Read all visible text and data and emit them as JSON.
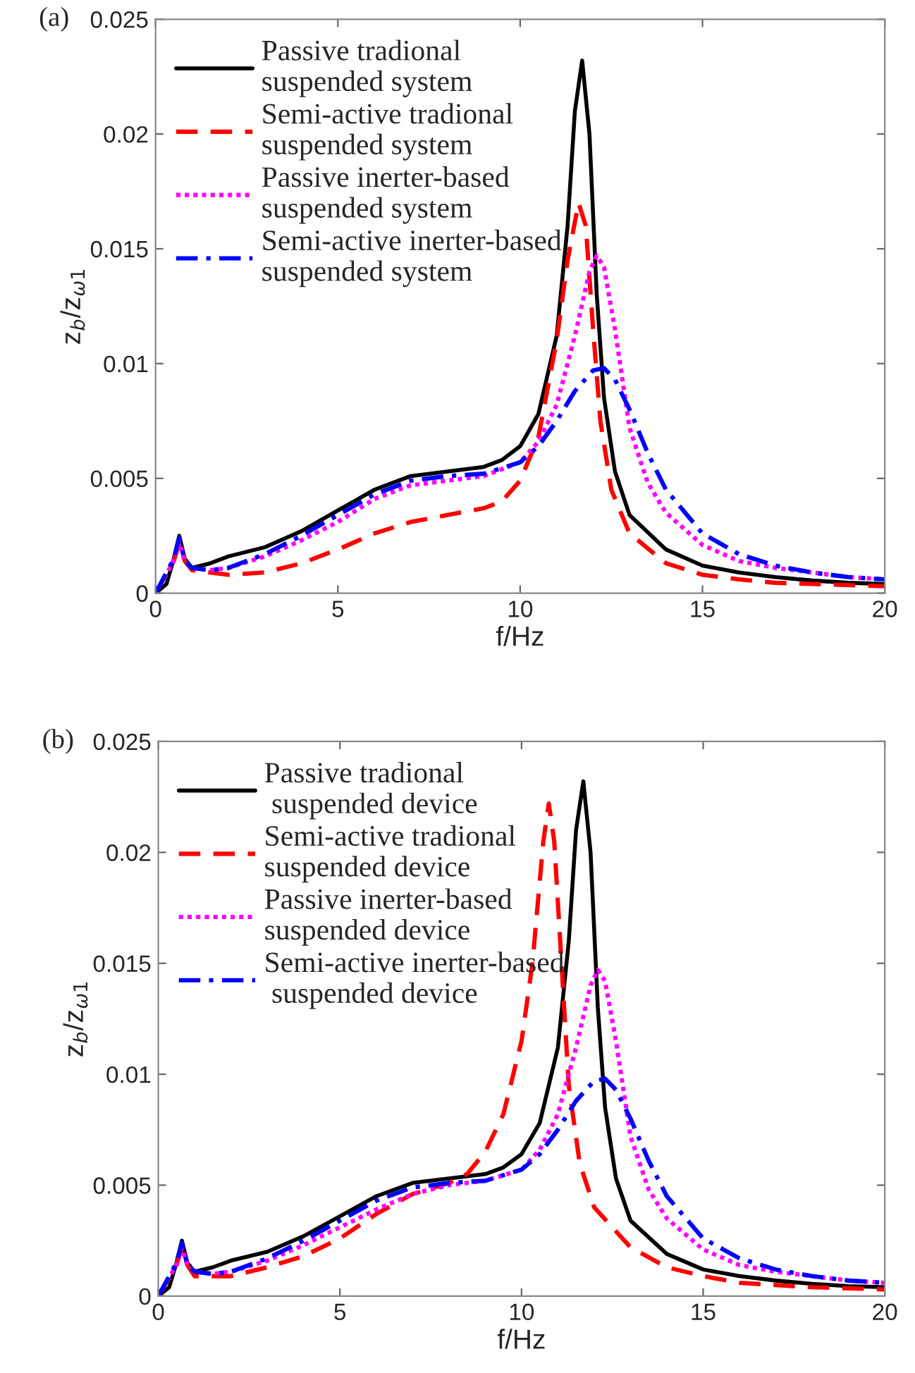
{
  "chart_data": [
    {
      "type": "line",
      "title": "(a)",
      "xlabel": "f/Hz",
      "ylabel": "z$_{b}$/z$_{ω1}$",
      "xlim": [
        0,
        20
      ],
      "xticks": [
        0,
        5,
        10,
        15,
        20
      ],
      "ylim": [
        0,
        0.025
      ],
      "yticks": [
        0,
        0.005,
        0.01,
        0.015,
        0.02,
        0.025
      ],
      "grid": false,
      "legend": "top left",
      "series": [
        {
          "name": "Passive tradional\nsuspended system",
          "color": "#000000",
          "line_style": "solid",
          "x": [
            0,
            0.3,
            0.5,
            0.65,
            0.8,
            1.0,
            1.5,
            2,
            3,
            4,
            5,
            6,
            7,
            8,
            9,
            9.5,
            10,
            10.5,
            11,
            11.3,
            11.5,
            11.7,
            11.9,
            12.1,
            12.3,
            12.6,
            13,
            14,
            15,
            16,
            17,
            18,
            19,
            20
          ],
          "values": [
            0,
            0.0004,
            0.0015,
            0.0025,
            0.0015,
            0.0011,
            0.0013,
            0.0016,
            0.002,
            0.0027,
            0.0036,
            0.0045,
            0.0051,
            0.0053,
            0.0055,
            0.0058,
            0.0064,
            0.0078,
            0.0112,
            0.016,
            0.021,
            0.0232,
            0.02,
            0.013,
            0.0085,
            0.0053,
            0.0034,
            0.0019,
            0.0012,
            0.0009,
            0.0007,
            0.00055,
            0.00045,
            0.0004
          ]
        },
        {
          "name": "Semi-active tradional\nsuspended system",
          "color": "#ff0000",
          "line_style": "dashed",
          "x": [
            0,
            0.5,
            0.65,
            0.8,
            1,
            2,
            3,
            4,
            5,
            6,
            7,
            8,
            9,
            9.5,
            10,
            10.5,
            11,
            11.3,
            11.6,
            11.8,
            12,
            12.2,
            12.5,
            13,
            14,
            15,
            16,
            17,
            18,
            20
          ],
          "values": [
            0,
            0.0014,
            0.0022,
            0.0014,
            0.001,
            0.0008,
            0.0009,
            0.0013,
            0.0019,
            0.0026,
            0.0031,
            0.0034,
            0.0037,
            0.004,
            0.0049,
            0.0068,
            0.011,
            0.0145,
            0.017,
            0.016,
            0.0115,
            0.0075,
            0.0045,
            0.0026,
            0.0013,
            0.0008,
            0.0006,
            0.00045,
            0.0004,
            0.0003
          ]
        },
        {
          "name": "Passive inerter-based\nsuspended system",
          "color": "#ff00ff",
          "line_style": "dotted",
          "x": [
            0,
            0.5,
            0.65,
            0.8,
            1,
            1.5,
            2,
            3,
            4,
            5,
            6,
            7,
            8,
            9,
            10,
            10.5,
            11,
            11.5,
            11.9,
            12.1,
            12.3,
            12.6,
            13,
            13.5,
            14,
            15,
            16,
            17,
            18,
            19,
            20
          ],
          "values": [
            0,
            0.0014,
            0.0022,
            0.0014,
            0.0011,
            0.001,
            0.0011,
            0.0016,
            0.0023,
            0.0031,
            0.0041,
            0.0047,
            0.0049,
            0.0051,
            0.0057,
            0.0066,
            0.0082,
            0.0112,
            0.014,
            0.0147,
            0.0142,
            0.0115,
            0.0072,
            0.0048,
            0.0035,
            0.0021,
            0.0014,
            0.0011,
            0.0009,
            0.0007,
            0.0006
          ]
        },
        {
          "name": "Semi-active inerter-based\nsuspended system",
          "color": "#0000ff",
          "line_style": "dashdot",
          "x": [
            0,
            0.5,
            0.65,
            0.8,
            1,
            1.5,
            2,
            3,
            4,
            5,
            6,
            7,
            8,
            9,
            10,
            10.5,
            11,
            11.5,
            12,
            12.3,
            12.6,
            13,
            13.5,
            14,
            15,
            16,
            17,
            18,
            19,
            20
          ],
          "values": [
            0,
            0.0015,
            0.0024,
            0.0014,
            0.0011,
            0.001,
            0.0011,
            0.0017,
            0.0025,
            0.0034,
            0.0043,
            0.0049,
            0.0051,
            0.0052,
            0.0057,
            0.0064,
            0.0075,
            0.0088,
            0.0097,
            0.0098,
            0.0093,
            0.008,
            0.0061,
            0.0045,
            0.0026,
            0.0017,
            0.0012,
            0.0009,
            0.0007,
            0.0006
          ]
        }
      ]
    },
    {
      "type": "line",
      "title": "(b)",
      "xlabel": "f/Hz",
      "ylabel": "z$_{b}$/z$_{ω1}$",
      "xlim": [
        0,
        20
      ],
      "xticks": [
        0,
        5,
        10,
        15,
        20
      ],
      "ylim": [
        0,
        0.025
      ],
      "yticks": [
        0,
        0.005,
        0.01,
        0.015,
        0.02,
        0.025
      ],
      "grid": false,
      "legend": "top left",
      "series": [
        {
          "name": "Passive tradional\n suspended device",
          "color": "#000000",
          "line_style": "solid",
          "x": [
            0,
            0.3,
            0.5,
            0.65,
            0.8,
            1.0,
            1.5,
            2,
            3,
            4,
            5,
            6,
            7,
            8,
            9,
            9.5,
            10,
            10.5,
            11,
            11.3,
            11.5,
            11.7,
            11.9,
            12.1,
            12.3,
            12.6,
            13,
            14,
            15,
            16,
            17,
            18,
            19,
            20
          ],
          "values": [
            0,
            0.0004,
            0.0015,
            0.0025,
            0.0015,
            0.0011,
            0.0013,
            0.0016,
            0.002,
            0.0027,
            0.0036,
            0.0045,
            0.0051,
            0.0053,
            0.0055,
            0.0058,
            0.0064,
            0.0078,
            0.0112,
            0.016,
            0.021,
            0.0232,
            0.02,
            0.013,
            0.0085,
            0.0053,
            0.0034,
            0.0019,
            0.0012,
            0.0009,
            0.0007,
            0.00055,
            0.00045,
            0.0004
          ]
        },
        {
          "name": "Semi-active tradional\nsuspended device",
          "color": "#ff0000",
          "line_style": "dashed",
          "x": [
            0,
            0.5,
            0.65,
            0.8,
            1,
            2,
            3,
            4,
            5,
            6,
            7,
            8,
            8.5,
            9,
            9.5,
            10,
            10.3,
            10.6,
            10.75,
            10.9,
            11.1,
            11.3,
            11.6,
            12,
            13,
            14,
            15,
            16,
            18,
            20
          ],
          "values": [
            0,
            0.0014,
            0.0022,
            0.0014,
            0.0009,
            0.0009,
            0.0013,
            0.0018,
            0.0026,
            0.0037,
            0.0046,
            0.0051,
            0.0055,
            0.0065,
            0.0082,
            0.0115,
            0.015,
            0.0205,
            0.0222,
            0.0205,
            0.015,
            0.0095,
            0.006,
            0.004,
            0.0022,
            0.0013,
            0.0009,
            0.0006,
            0.0004,
            0.0003
          ]
        },
        {
          "name": "Passive inerter-based\nsuspended device",
          "color": "#ff00ff",
          "line_style": "dotted",
          "x": [
            0,
            0.5,
            0.65,
            0.8,
            1,
            1.5,
            2,
            3,
            4,
            5,
            6,
            7,
            8,
            9,
            10,
            10.5,
            11,
            11.5,
            11.9,
            12.1,
            12.3,
            12.6,
            13,
            13.5,
            14,
            15,
            16,
            17,
            18,
            19,
            20
          ],
          "values": [
            0,
            0.0014,
            0.0022,
            0.0014,
            0.0011,
            0.001,
            0.0011,
            0.0016,
            0.0023,
            0.0031,
            0.0039,
            0.0046,
            0.005,
            0.0052,
            0.0057,
            0.0066,
            0.0082,
            0.0112,
            0.014,
            0.0147,
            0.0142,
            0.0115,
            0.0072,
            0.0048,
            0.0035,
            0.0021,
            0.0014,
            0.0011,
            0.0009,
            0.0007,
            0.0006
          ]
        },
        {
          "name": "Semi-active inerter-based\n suspended device",
          "color": "#0000ff",
          "line_style": "dashdot",
          "x": [
            0,
            0.5,
            0.65,
            0.8,
            1,
            1.5,
            2,
            3,
            4,
            5,
            6,
            7,
            8,
            9,
            10,
            10.5,
            11,
            11.5,
            12,
            12.3,
            12.6,
            13,
            13.5,
            14,
            15,
            16,
            17,
            18,
            19,
            20
          ],
          "values": [
            0,
            0.0015,
            0.0024,
            0.0014,
            0.0011,
            0.001,
            0.0011,
            0.0017,
            0.0025,
            0.0034,
            0.0043,
            0.0049,
            0.0051,
            0.0052,
            0.0057,
            0.0064,
            0.0075,
            0.0088,
            0.0097,
            0.0098,
            0.0093,
            0.008,
            0.0061,
            0.0045,
            0.0026,
            0.0017,
            0.0012,
            0.0009,
            0.0007,
            0.0006
          ]
        }
      ]
    }
  ]
}
